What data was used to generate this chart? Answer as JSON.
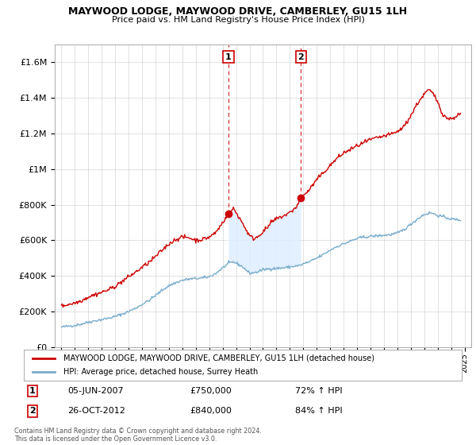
{
  "title": "MAYWOOD LODGE, MAYWOOD DRIVE, CAMBERLEY, GU15 1LH",
  "subtitle": "Price paid vs. HM Land Registry's House Price Index (HPI)",
  "legend_line1": "MAYWOOD LODGE, MAYWOOD DRIVE, CAMBERLEY, GU15 1LH (detached house)",
  "legend_line2": "HPI: Average price, detached house, Surrey Heath",
  "sale1_date": "05-JUN-2007",
  "sale1_price": 750000,
  "sale1_pct": "72%",
  "sale2_date": "26-OCT-2012",
  "sale2_price": 840000,
  "sale2_pct": "84%",
  "sale1_x": 2007.43,
  "sale2_x": 2012.82,
  "footnote": "Contains HM Land Registry data © Crown copyright and database right 2024.\nThis data is licensed under the Open Government Licence v3.0.",
  "line_color_red": "#cc0000",
  "line_color_blue": "#7aadcc",
  "shade_color": "#ddeeff",
  "background_color": "#ffffff",
  "ylim_max": 1700000,
  "xlim_start": 1994.5,
  "xlim_end": 2025.5,
  "hpi_data": [
    [
      1995.0,
      112000
    ],
    [
      1995.5,
      118000
    ],
    [
      1996.0,
      122000
    ],
    [
      1996.5,
      130000
    ],
    [
      1997.0,
      140000
    ],
    [
      1997.5,
      148000
    ],
    [
      1998.0,
      155000
    ],
    [
      1998.5,
      162000
    ],
    [
      1999.0,
      172000
    ],
    [
      1999.5,
      185000
    ],
    [
      2000.0,
      200000
    ],
    [
      2000.5,
      218000
    ],
    [
      2001.0,
      240000
    ],
    [
      2001.5,
      262000
    ],
    [
      2002.0,
      290000
    ],
    [
      2002.5,
      320000
    ],
    [
      2003.0,
      345000
    ],
    [
      2003.5,
      362000
    ],
    [
      2004.0,
      375000
    ],
    [
      2004.5,
      382000
    ],
    [
      2005.0,
      385000
    ],
    [
      2005.5,
      388000
    ],
    [
      2006.0,
      395000
    ],
    [
      2006.5,
      415000
    ],
    [
      2007.0,
      445000
    ],
    [
      2007.43,
      470000
    ],
    [
      2007.8,
      478000
    ],
    [
      2008.0,
      472000
    ],
    [
      2008.5,
      450000
    ],
    [
      2009.0,
      415000
    ],
    [
      2009.5,
      420000
    ],
    [
      2010.0,
      435000
    ],
    [
      2010.5,
      440000
    ],
    [
      2011.0,
      442000
    ],
    [
      2011.5,
      445000
    ],
    [
      2012.0,
      450000
    ],
    [
      2012.82,
      460000
    ],
    [
      2013.0,
      468000
    ],
    [
      2013.5,
      480000
    ],
    [
      2014.0,
      500000
    ],
    [
      2014.5,
      520000
    ],
    [
      2015.0,
      545000
    ],
    [
      2015.5,
      565000
    ],
    [
      2016.0,
      580000
    ],
    [
      2016.5,
      595000
    ],
    [
      2017.0,
      610000
    ],
    [
      2017.5,
      618000
    ],
    [
      2018.0,
      622000
    ],
    [
      2018.5,
      625000
    ],
    [
      2019.0,
      628000
    ],
    [
      2019.5,
      632000
    ],
    [
      2020.0,
      640000
    ],
    [
      2020.5,
      660000
    ],
    [
      2021.0,
      690000
    ],
    [
      2021.5,
      720000
    ],
    [
      2022.0,
      745000
    ],
    [
      2022.5,
      755000
    ],
    [
      2023.0,
      740000
    ],
    [
      2023.5,
      730000
    ],
    [
      2024.0,
      720000
    ],
    [
      2024.5,
      715000
    ]
  ],
  "red_data": [
    [
      1995.0,
      230000
    ],
    [
      1995.5,
      240000
    ],
    [
      1996.0,
      248000
    ],
    [
      1996.5,
      262000
    ],
    [
      1997.0,
      282000
    ],
    [
      1997.5,
      295000
    ],
    [
      1998.0,
      308000
    ],
    [
      1998.5,
      322000
    ],
    [
      1999.0,
      342000
    ],
    [
      1999.5,
      368000
    ],
    [
      2000.0,
      395000
    ],
    [
      2000.5,
      420000
    ],
    [
      2001.0,
      448000
    ],
    [
      2001.5,
      475000
    ],
    [
      2002.0,
      508000
    ],
    [
      2002.5,
      545000
    ],
    [
      2003.0,
      580000
    ],
    [
      2003.5,
      605000
    ],
    [
      2004.0,
      618000
    ],
    [
      2004.5,
      615000
    ],
    [
      2005.0,
      600000
    ],
    [
      2005.5,
      605000
    ],
    [
      2006.0,
      618000
    ],
    [
      2006.5,
      645000
    ],
    [
      2007.0,
      700000
    ],
    [
      2007.2,
      725000
    ],
    [
      2007.43,
      750000
    ],
    [
      2007.6,
      760000
    ],
    [
      2007.8,
      780000
    ],
    [
      2008.0,
      755000
    ],
    [
      2008.3,
      720000
    ],
    [
      2008.6,
      680000
    ],
    [
      2009.0,
      625000
    ],
    [
      2009.3,
      610000
    ],
    [
      2009.6,
      620000
    ],
    [
      2010.0,
      650000
    ],
    [
      2010.3,
      668000
    ],
    [
      2010.6,
      700000
    ],
    [
      2011.0,
      720000
    ],
    [
      2011.3,
      730000
    ],
    [
      2011.6,
      740000
    ],
    [
      2012.0,
      755000
    ],
    [
      2012.3,
      775000
    ],
    [
      2012.6,
      800000
    ],
    [
      2012.82,
      840000
    ],
    [
      2013.0,
      855000
    ],
    [
      2013.3,
      870000
    ],
    [
      2013.6,
      900000
    ],
    [
      2014.0,
      940000
    ],
    [
      2014.5,
      980000
    ],
    [
      2015.0,
      1020000
    ],
    [
      2015.5,
      1060000
    ],
    [
      2016.0,
      1090000
    ],
    [
      2016.5,
      1110000
    ],
    [
      2017.0,
      1130000
    ],
    [
      2017.5,
      1148000
    ],
    [
      2018.0,
      1165000
    ],
    [
      2018.5,
      1175000
    ],
    [
      2019.0,
      1185000
    ],
    [
      2019.5,
      1195000
    ],
    [
      2020.0,
      1210000
    ],
    [
      2020.5,
      1240000
    ],
    [
      2021.0,
      1300000
    ],
    [
      2021.5,
      1370000
    ],
    [
      2022.0,
      1420000
    ],
    [
      2022.3,
      1445000
    ],
    [
      2022.6,
      1430000
    ],
    [
      2023.0,
      1380000
    ],
    [
      2023.3,
      1320000
    ],
    [
      2023.6,
      1290000
    ],
    [
      2024.0,
      1280000
    ],
    [
      2024.3,
      1295000
    ],
    [
      2024.7,
      1310000
    ]
  ]
}
